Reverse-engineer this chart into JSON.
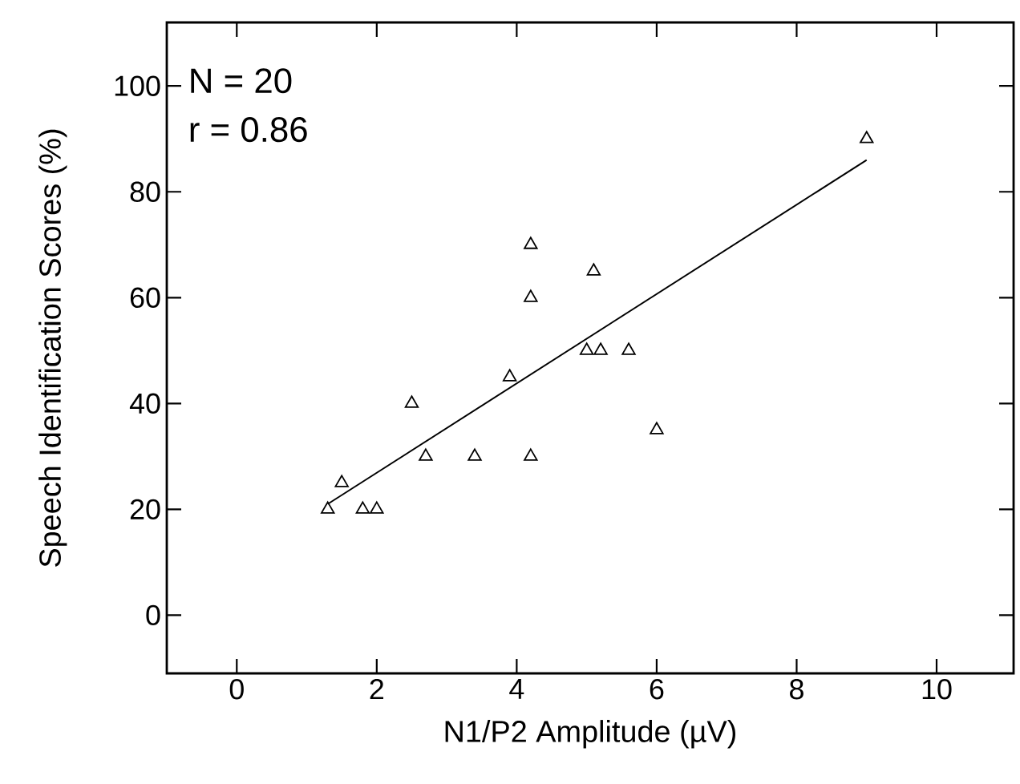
{
  "chart_data": {
    "type": "scatter",
    "xlabel": "N1/P2 Amplitude (µV)",
    "ylabel": "Speech Identification Scores (%)",
    "xlim": [
      -1,
      11.1
    ],
    "ylim": [
      -11,
      112
    ],
    "xticks": [
      0,
      2,
      4,
      6,
      8,
      10
    ],
    "yticks": [
      0,
      20,
      40,
      60,
      80,
      100
    ],
    "grid": false,
    "annotations": [
      "N = 20",
      "r = 0.86"
    ],
    "series": [
      {
        "color": "#000000",
        "marker": "triangle",
        "x": [
          1.3,
          1.5,
          1.8,
          2.0,
          2.5,
          2.7,
          3.4,
          3.9,
          4.2,
          4.2,
          4.2,
          5.0,
          5.2,
          5.1,
          5.6,
          6.0,
          9.0
        ],
        "values": [
          20,
          25,
          20,
          20,
          40,
          30,
          30,
          45,
          70,
          60,
          30,
          50,
          50,
          65,
          50,
          35,
          90
        ]
      },
      {
        "type": "line",
        "color": "#000000",
        "marker": "none",
        "line_style": "solid",
        "x": [
          1.3,
          9.0
        ],
        "values": [
          21,
          86
        ]
      }
    ]
  }
}
